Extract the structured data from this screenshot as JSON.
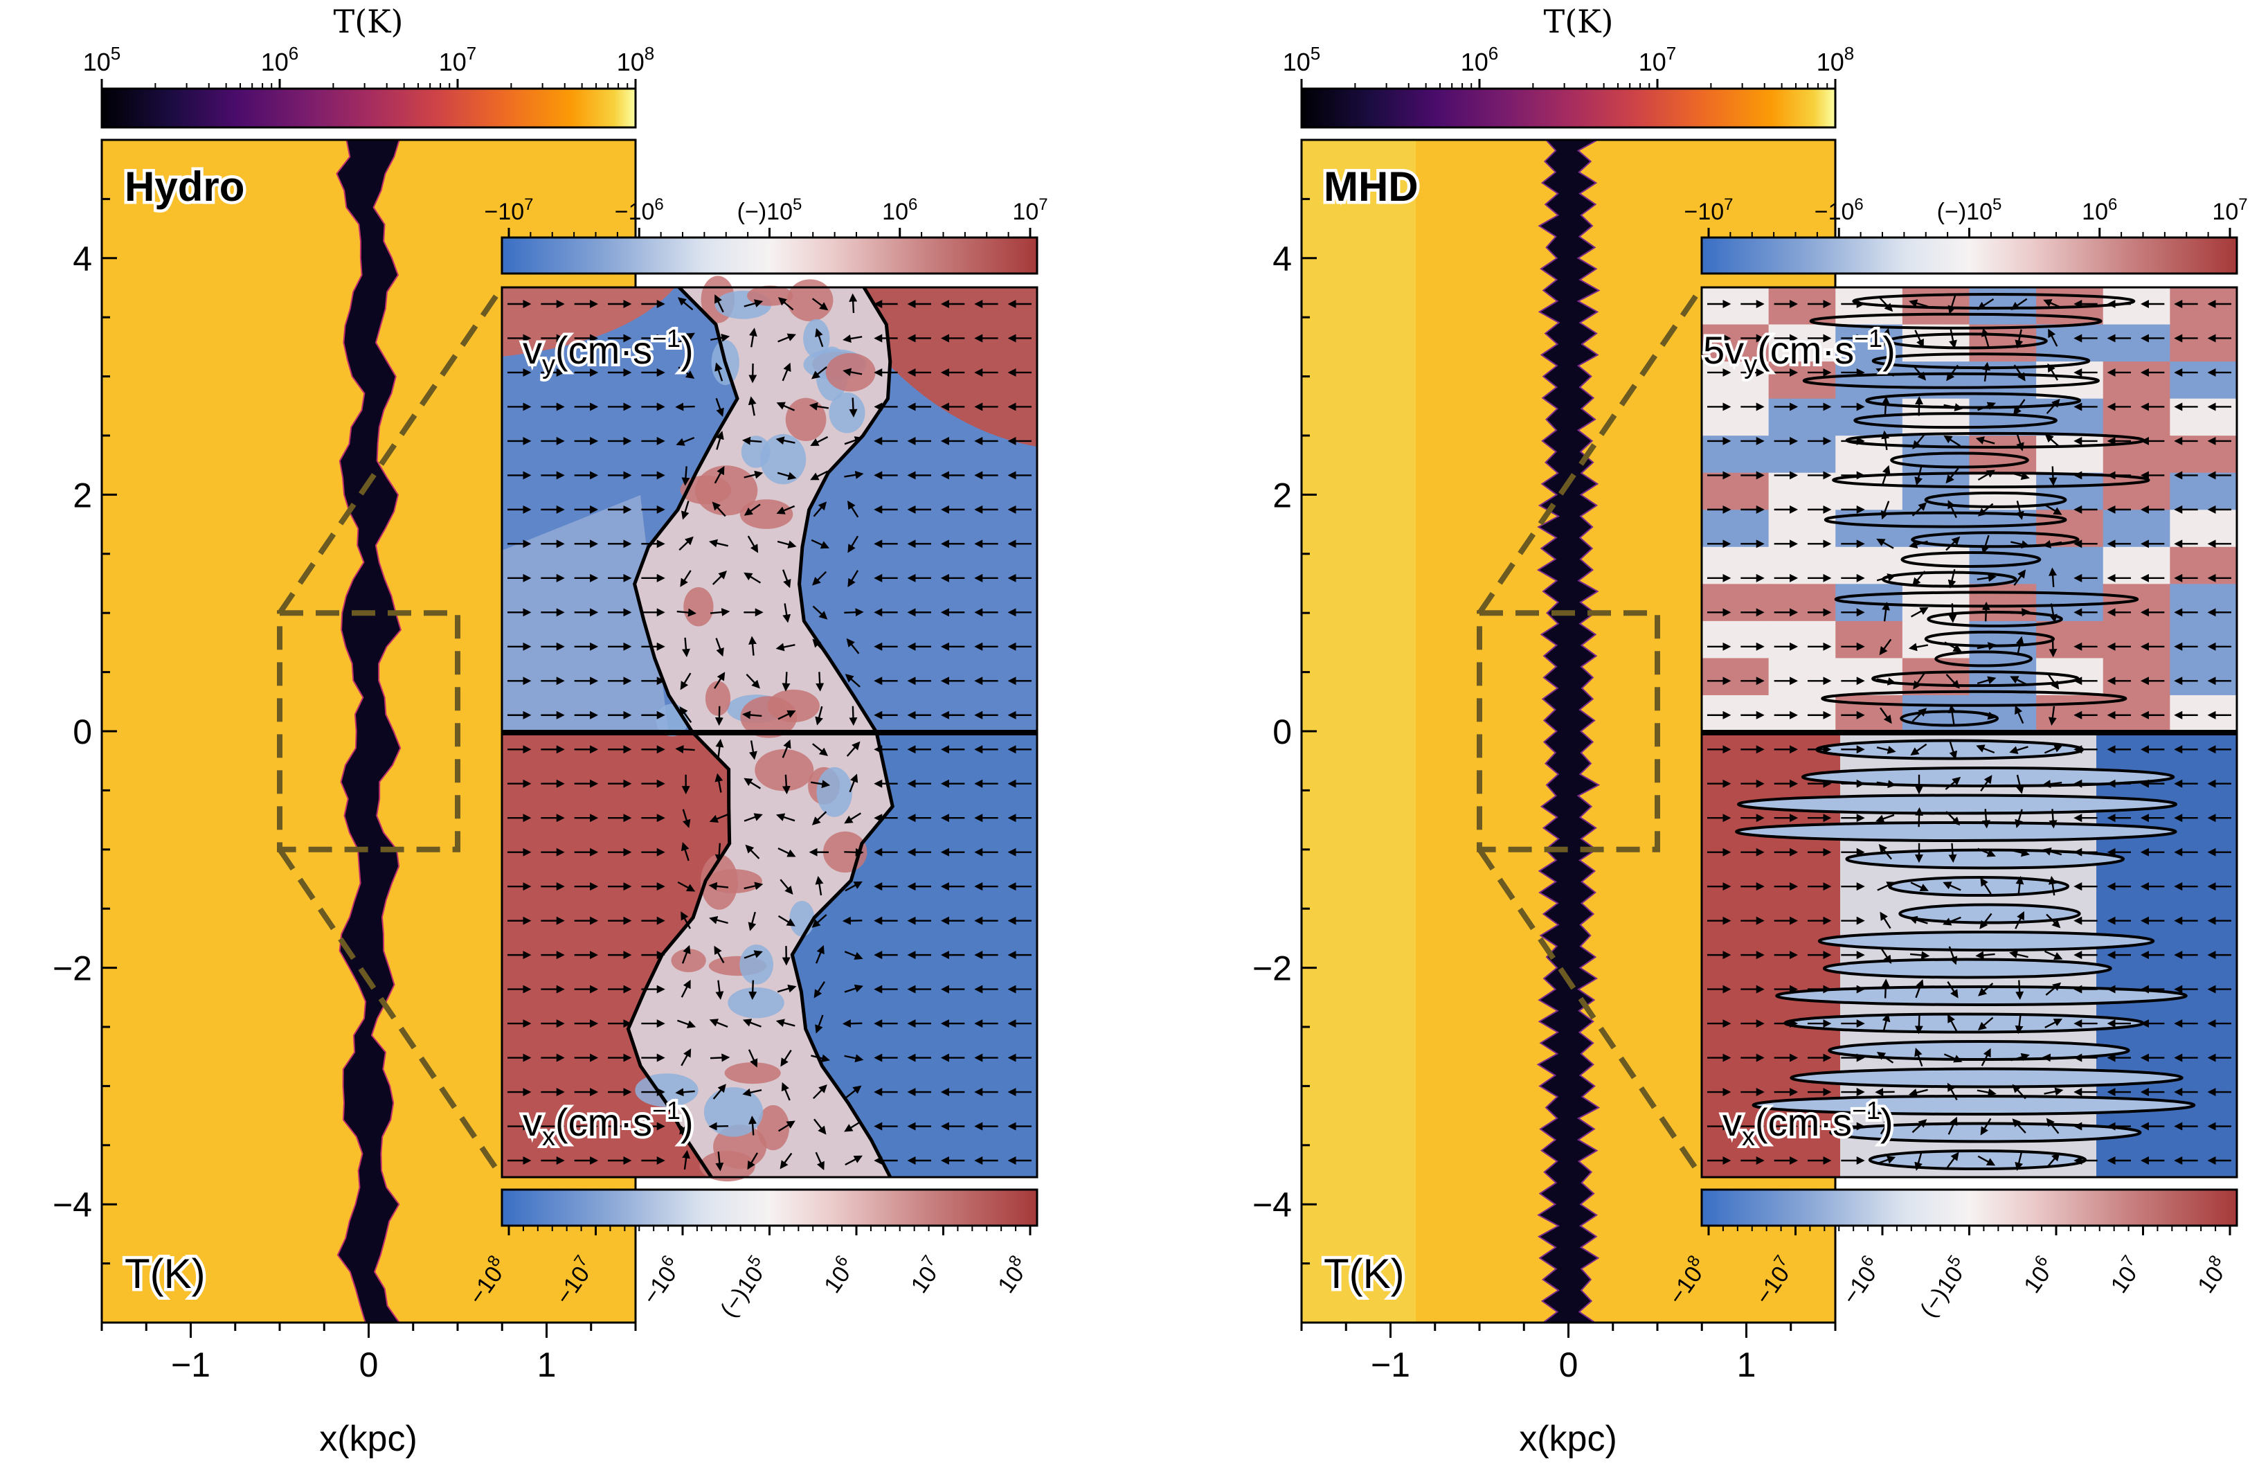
{
  "chart_data": [
    {
      "type": "heatmap",
      "panel_label": "Hydro",
      "field_label": "T(K)",
      "temperature_colorbar": {
        "title": "T(K)",
        "scale": "log",
        "range": [
          100000,
          100000000
        ],
        "tick_labels": [
          {
            "base": "10",
            "exp": "5"
          },
          {
            "base": "10",
            "exp": "6"
          },
          {
            "base": "10",
            "exp": "7"
          },
          {
            "base": "10",
            "exp": "8"
          }
        ]
      },
      "xlabel": "x(kpc)",
      "xlim": [
        -1.5,
        1.5
      ],
      "ylim": [
        -5,
        5
      ],
      "x_ticks": [
        {
          "v": -1,
          "label": "−1"
        },
        {
          "v": 0,
          "label": "0"
        },
        {
          "v": 1,
          "label": "1"
        }
      ],
      "y_ticks": [
        {
          "v": 4,
          "label": "4"
        },
        {
          "v": 2,
          "label": "2"
        },
        {
          "v": 0,
          "label": "0"
        },
        {
          "v": -2,
          "label": "−2"
        },
        {
          "v": -4,
          "label": "−4"
        }
      ],
      "hot_medium_T_approx": 30000000,
      "cold_layer_T_approx": 100000,
      "cold_layer_half_width_kpc": 0.12,
      "zoom_box": {
        "x": [
          -0.5,
          0.5
        ],
        "y": [
          -1,
          1
        ]
      },
      "inset": {
        "upper_label": {
          "pre": "v",
          "sub": "y",
          "mid": "(cm·s",
          "sup": "−1",
          "post": ")"
        },
        "lower_label": {
          "pre": "v",
          "sub": "x",
          "mid": "(cm·s",
          "sup": "−1",
          "post": ")"
        },
        "upper_colorbar": {
          "quantity": "v_y",
          "scale": "symlog",
          "tick_labels": [
            {
              "pre": "−",
              "base": "10",
              "exp": "7"
            },
            {
              "pre": "−",
              "base": "10",
              "exp": "6"
            },
            {
              "pre": "(−)",
              "base": "10",
              "exp": "5"
            },
            {
              "pre": "",
              "base": "10",
              "exp": "6"
            },
            {
              "pre": "",
              "base": "10",
              "exp": "7"
            }
          ]
        },
        "lower_colorbar": {
          "quantity": "v_x",
          "scale": "symlog",
          "tick_labels": [
            {
              "pre": "−",
              "base": "10",
              "exp": "8"
            },
            {
              "pre": "−",
              "base": "10",
              "exp": "7"
            },
            {
              "pre": "−",
              "base": "10",
              "exp": "6"
            },
            {
              "pre": "(−)",
              "base": "10",
              "exp": "5"
            },
            {
              "pre": "",
              "base": "10",
              "exp": "6"
            },
            {
              "pre": "",
              "base": "10",
              "exp": "7"
            },
            {
              "pre": "",
              "base": "10",
              "exp": "8"
            }
          ]
        }
      }
    },
    {
      "type": "heatmap",
      "panel_label": "MHD",
      "field_label": "T(K)",
      "temperature_colorbar": {
        "title": "T(K)",
        "scale": "log",
        "range": [
          100000,
          100000000
        ],
        "tick_labels": [
          {
            "base": "10",
            "exp": "5"
          },
          {
            "base": "10",
            "exp": "6"
          },
          {
            "base": "10",
            "exp": "7"
          },
          {
            "base": "10",
            "exp": "8"
          }
        ]
      },
      "xlabel": "x(kpc)",
      "xlim": [
        -1.5,
        1.5
      ],
      "ylim": [
        -5,
        5
      ],
      "x_ticks": [
        {
          "v": -1,
          "label": "−1"
        },
        {
          "v": 0,
          "label": "0"
        },
        {
          "v": 1,
          "label": "1"
        }
      ],
      "y_ticks": [
        {
          "v": 4,
          "label": "4"
        },
        {
          "v": 2,
          "label": "2"
        },
        {
          "v": 0,
          "label": "0"
        },
        {
          "v": -2,
          "label": "−2"
        },
        {
          "v": -4,
          "label": "−4"
        }
      ],
      "hot_medium_T_approx": 30000000,
      "cold_layer_T_approx": 100000,
      "cold_layer_half_width_kpc": 0.15,
      "zoom_box": {
        "x": [
          -0.5,
          0.5
        ],
        "y": [
          -1,
          1
        ]
      },
      "inset": {
        "upper_label": {
          "pre": "5v",
          "sub": "y",
          "mid": "(cm·s",
          "sup": "−1",
          "post": ")"
        },
        "lower_label": {
          "pre": "v",
          "sub": "x",
          "mid": "(cm·s",
          "sup": "−1",
          "post": ")"
        },
        "upper_colorbar": {
          "quantity": "v_y",
          "scale": "symlog",
          "tick_labels": [
            {
              "pre": "−",
              "base": "10",
              "exp": "7"
            },
            {
              "pre": "−",
              "base": "10",
              "exp": "6"
            },
            {
              "pre": "(−)",
              "base": "10",
              "exp": "5"
            },
            {
              "pre": "",
              "base": "10",
              "exp": "6"
            },
            {
              "pre": "",
              "base": "10",
              "exp": "7"
            }
          ]
        },
        "lower_colorbar": {
          "quantity": "v_x",
          "scale": "symlog",
          "tick_labels": [
            {
              "pre": "−",
              "base": "10",
              "exp": "8"
            },
            {
              "pre": "−",
              "base": "10",
              "exp": "7"
            },
            {
              "pre": "−",
              "base": "10",
              "exp": "6"
            },
            {
              "pre": "(−)",
              "base": "10",
              "exp": "5"
            },
            {
              "pre": "",
              "base": "10",
              "exp": "6"
            },
            {
              "pre": "",
              "base": "10",
              "exp": "7"
            },
            {
              "pre": "",
              "base": "10",
              "exp": "8"
            }
          ]
        }
      }
    }
  ],
  "colors": {
    "hot_medium": "#f9c02c",
    "cold_layer": "#0b0620",
    "negative_velocity": "#4070bf",
    "positive_velocity": "#b04848",
    "zero_velocity": "#f4f1f1",
    "zoom_box": "#6b5a22"
  }
}
